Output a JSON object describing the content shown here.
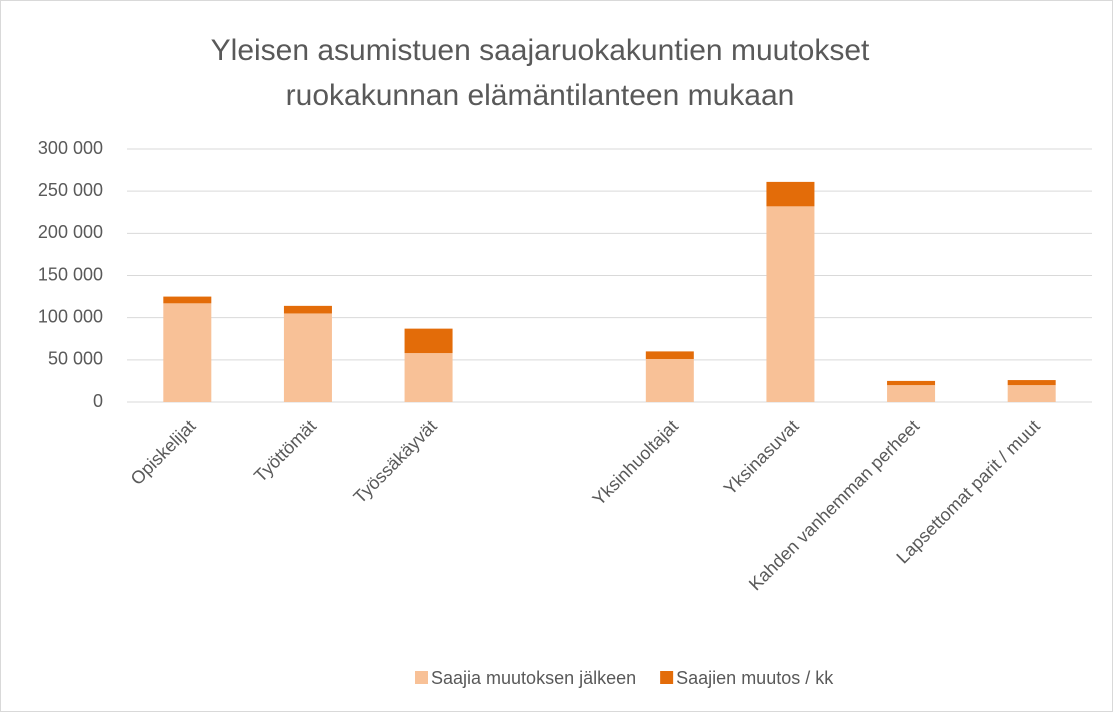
{
  "chart_data": {
    "type": "stacked-bar",
    "title": [
      "Yleisen asumistuen saajaruokakuntien muutokset",
      "ruokakunnan elämäntilanteen mukaan"
    ],
    "categories": [
      "Opiskelijat",
      "Työttömät",
      "Työssäkäyvät",
      null,
      "Yksinhuoltajat",
      "Yksinasuvat",
      "Kahden vanhemman perheet",
      "Lapsettomat parit / muut"
    ],
    "series": [
      {
        "name": "Saajia muutoksen jälkeen",
        "color": "#f8c197",
        "values": [
          117000,
          105000,
          58000,
          null,
          51000,
          232000,
          20000,
          20000
        ]
      },
      {
        "name": "Saajien muutos / kk",
        "color": "#e36c09",
        "values": [
          8000,
          9000,
          29000,
          null,
          9000,
          29000,
          5000,
          6000
        ]
      }
    ],
    "ylim": [
      0,
      300000
    ],
    "yticks": [
      0,
      {
        "value": 50000,
        "label": "50 000"
      },
      {
        "value": 100000,
        "label": "100 000"
      },
      {
        "value": 150000,
        "label": "150 000"
      },
      {
        "value": 200000,
        "label": "200 000"
      },
      {
        "value": 250000,
        "label": "250 000"
      },
      {
        "value": 300000,
        "label": "300 000"
      }
    ],
    "grid": true,
    "legend": "bottom"
  }
}
